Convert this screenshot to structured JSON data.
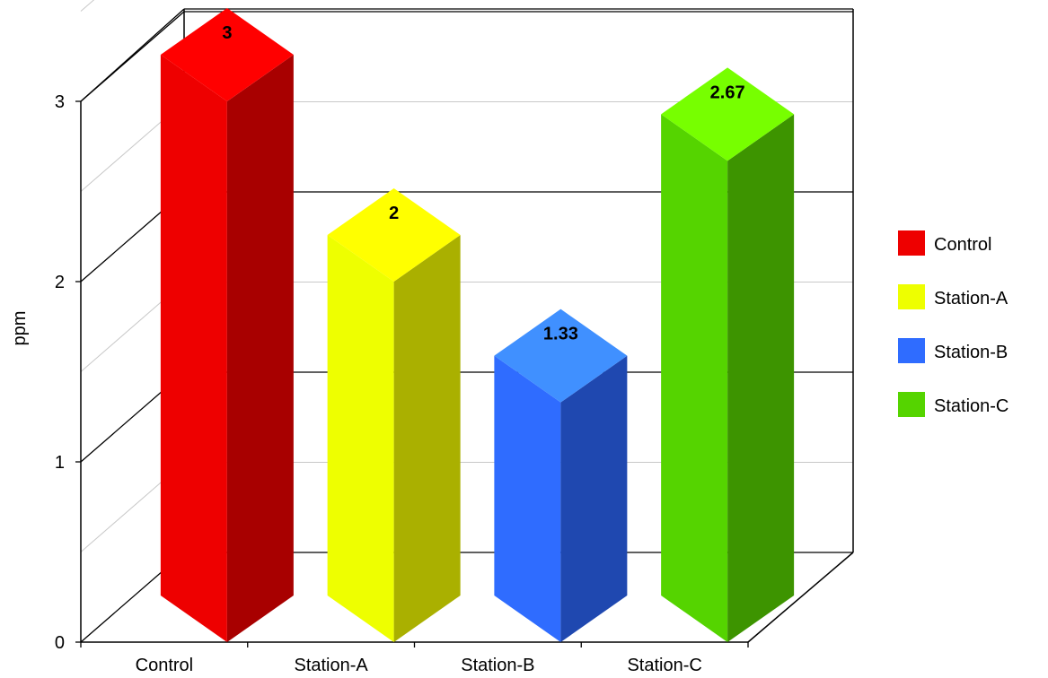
{
  "chart_data": {
    "type": "bar",
    "title": "",
    "xlabel": "",
    "ylabel": "ppm",
    "categories": [
      "Control",
      "Station-A",
      "Station-B",
      "Station-C"
    ],
    "values": [
      3,
      2,
      1.33,
      2.67
    ],
    "value_labels": [
      "3",
      "2",
      "1.33",
      "2.67"
    ],
    "ylim": [
      0,
      3
    ],
    "y_ticks": [
      0,
      1,
      2,
      3
    ],
    "grid": true,
    "three_d": true,
    "legend": {
      "position": "right",
      "items": [
        "Control",
        "Station-A",
        "Station-B",
        "Station-C"
      ]
    },
    "colors": {
      "Control": {
        "front": "#ee0000",
        "side": "#a80000",
        "top": "#ff0000"
      },
      "Station-A": {
        "front": "#eeff00",
        "side": "#aab000",
        "top": "#ffff00"
      },
      "Station-B": {
        "front": "#2f6cff",
        "side": "#1f48b0",
        "top": "#4090ff"
      },
      "Station-C": {
        "front": "#55d400",
        "side": "#3d9400",
        "top": "#77ff00"
      }
    }
  }
}
